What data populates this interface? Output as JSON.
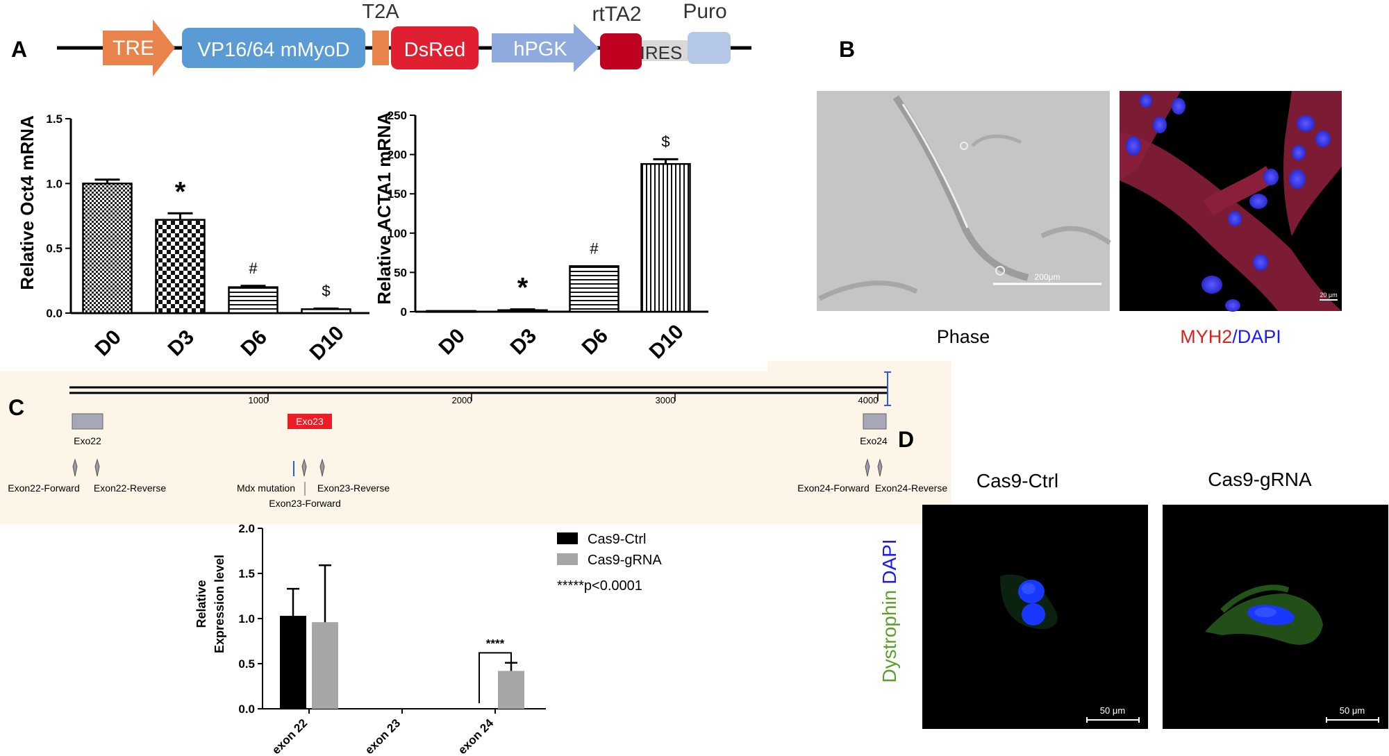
{
  "panels": {
    "a": "A",
    "b": "B",
    "c": "C",
    "d": "D"
  },
  "construct": {
    "elements": [
      {
        "label": "TRE",
        "color": "#e8834b"
      },
      {
        "label": "VP16/64 mMyoD",
        "color": "#5b9bd5"
      },
      {
        "label": "T2A",
        "color": "#e8834b"
      },
      {
        "label": "DsRed",
        "color": "#e02030"
      },
      {
        "label": "hPGK",
        "color": "#8faadc"
      },
      {
        "label": "rtTA2",
        "color": "#c00020"
      },
      {
        "label": "IRES",
        "color": "#d9d9d9"
      },
      {
        "label": "Puro",
        "color": "#b4c7e7"
      }
    ]
  },
  "chart_data": [
    {
      "type": "bar",
      "title": "",
      "ylabel": "Relative Oct4 mRNA",
      "categories": [
        "D0",
        "D3",
        "D6",
        "D10"
      ],
      "values": [
        1.0,
        0.72,
        0.2,
        0.03
      ],
      "errors": [
        0.03,
        0.05,
        0.01,
        0.005
      ],
      "annotations": [
        "",
        "*",
        "#",
        "$"
      ],
      "ylim": [
        0,
        1.5
      ],
      "yticks": [
        "0.0",
        "0.5",
        "1.0",
        "1.5"
      ],
      "patterns": [
        "grid",
        "checker",
        "hlines",
        "hlines"
      ]
    },
    {
      "type": "bar",
      "title": "",
      "ylabel": "Relative ACTA1 mRNA",
      "categories": [
        "D0",
        "D3",
        "D6",
        "D10"
      ],
      "values": [
        1,
        2,
        58,
        188
      ],
      "errors": [
        0,
        1,
        0,
        6
      ],
      "annotations": [
        "",
        "*",
        "#",
        "$"
      ],
      "ylim": [
        0,
        250
      ],
      "yticks": [
        "0",
        "50",
        "100",
        "150",
        "200",
        "250"
      ],
      "patterns": [
        "plain",
        "plain",
        "hlines",
        "vlines"
      ]
    },
    {
      "type": "bar",
      "title": "",
      "ylabel": "Relative\nExpression level",
      "categories": [
        "exon 22",
        "exon 23",
        "exon 24"
      ],
      "series": [
        {
          "name": "Cas9-Ctrl",
          "color": "#000000",
          "values": [
            1.03,
            0,
            0
          ],
          "errors": [
            0.3,
            0,
            0
          ]
        },
        {
          "name": "Cas9-gRNA",
          "color": "#a6a6a6",
          "values": [
            0.96,
            0,
            0.42
          ],
          "errors": [
            0.63,
            0,
            0.09
          ]
        }
      ],
      "ylim": [
        0,
        2.0
      ],
      "yticks": [
        "0.0",
        "0.5",
        "1.0",
        "1.5",
        "2.0"
      ],
      "significance": "****",
      "legend_note": "*****p<0.0001"
    }
  ],
  "gene_map": {
    "ticks": [
      "1000",
      "2000",
      "3000",
      "4000"
    ],
    "exons": [
      "Exo22",
      "Exo23",
      "Exo24"
    ],
    "primers": [
      "Exon22-Forward",
      "Exon22-Reverse",
      "Mdx mutation",
      "Exon23-Forward",
      "Exon23-Reverse",
      "Exon24-Forward",
      "Exon24-Reverse"
    ]
  },
  "images": {
    "phase": {
      "caption": "Phase",
      "scale_bar": "200μm"
    },
    "myh2": {
      "caption_red": "MYH2",
      "caption_sep": "/",
      "caption_blue": "DAPI",
      "scale_bar": "20 μm"
    },
    "ctrl": {
      "title": "Cas9-Ctrl",
      "scale_bar": "50 μm"
    },
    "grna": {
      "title": "Cas9-gRNA",
      "scale_bar": "50 μm"
    },
    "stain": {
      "green": "Dystrophin",
      "blue": "DAPI"
    }
  },
  "colors": {
    "red_caption": "#e02020",
    "blue_caption": "#1a1aff",
    "green_caption": "#5aa02c",
    "gene_bg": "#fdf6e8"
  }
}
